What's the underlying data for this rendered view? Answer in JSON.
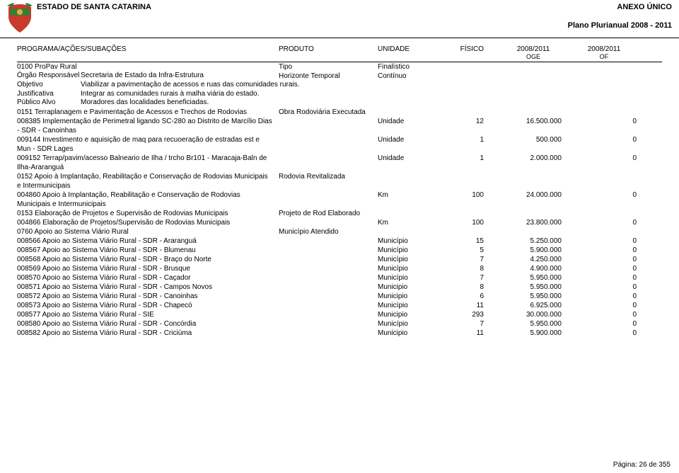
{
  "header": {
    "state": "ESTADO DE SANTA CATARINA",
    "anexo": "ANEXO ÚNICO",
    "plano": "Plano Plurianual 2008 - 2011"
  },
  "columns": {
    "programa": "PROGRAMA/AÇÕES/SUBAÇÕES",
    "produto": "PRODUTO",
    "unidade": "UNIDADE",
    "fisico": "FÍSICO",
    "oge_top": "2008/2011",
    "oge_sub": "OGE",
    "of_top": "2008/2011",
    "of_sub": "OF"
  },
  "meta": {
    "prog_code": "0100 ProPav Rural",
    "tipo_label": "Tipo",
    "tipo_value": "Finalístico",
    "orgao_label": "Órgão Responsável",
    "orgao_value": "Secretaria de Estado da Infra-Estrutura",
    "horiz_label": "Horizonte Temporal",
    "horiz_value": "Contínuo",
    "objetivo_label": "Objetivo",
    "objetivo_value": "Viabilizar a pavimentação de acessos e ruas das comunidades rurais.",
    "justif_label": "Justificativa",
    "justif_value": "Integrar as comunidades rurais à malha viária do estado.",
    "publico_label": "Público Alvo",
    "publico_value": "Moradores das localidades beneficiadas."
  },
  "sections": [
    {
      "title": "0151 Terraplanagem e Pavimentação de Acessos e Trechos de Rodovias",
      "produto": "Obra Rodoviária Executada",
      "rows": [
        {
          "desc": "008385 Implementação de Perimetral ligando SC-280 ao Distrito de Marcílio Dias - SDR - Canoinhas",
          "unit": "Unidade",
          "fis": "12",
          "oge": "16.500.000",
          "of": "0"
        },
        {
          "desc": "009144 Investimento e aquisição de maq para recuoeração de estradas est e Mun - SDR Lages",
          "unit": "Unidade",
          "fis": "1",
          "oge": "500.000",
          "of": "0"
        },
        {
          "desc": "009152 Terrap/pavim/acesso Balneario de Ilha / trcho Br101 - Maracaja-Baln de Ilha-Araranguá",
          "unit": "Unidade",
          "fis": "1",
          "oge": "2.000.000",
          "of": "0"
        }
      ]
    },
    {
      "title": "0152 Apoio à Implantação, Reabilitação e Conservação de Rodovias Municipais e Intermunicipais",
      "produto": "Rodovia Revitalizada",
      "rows": [
        {
          "desc": "004860 Apoio à Implantação, Reabilitação e Conservação de Rodovias Municipais e Intermunicipais",
          "unit": "Km",
          "fis": "100",
          "oge": "24.000.000",
          "of": "0"
        }
      ]
    },
    {
      "title": "0153 Elaboração de Projetos e Supervisão de Rodovias Municipais",
      "produto": "Projeto de Rod Elaborado",
      "rows": [
        {
          "desc": "004866 Elaboração de Projetos/Supervisão de Rodovias Municipais",
          "unit": "Km",
          "fis": "100",
          "oge": "23.800.000",
          "of": "0"
        }
      ]
    },
    {
      "title": "0760 Apoio ao Sistema Viário Rural",
      "produto": "Município Atendido",
      "rows": [
        {
          "desc": "008566 Apoio ao Sistema Viário Rural - SDR - Araranguá",
          "unit": "Município",
          "fis": "15",
          "oge": "5.250.000",
          "of": "0"
        },
        {
          "desc": "008567 Apoio ao Sistema Viário Rural - SDR - Blumenau",
          "unit": "Município",
          "fis": "5",
          "oge": "5.900.000",
          "of": "0"
        },
        {
          "desc": "008568 Apoio ao Sistema Viário Rural - SDR - Braço do Norte",
          "unit": "Município",
          "fis": "7",
          "oge": "4.250.000",
          "of": "0"
        },
        {
          "desc": "008569 Apoio ao Sistema Viário Rural - SDR - Brusque",
          "unit": "Município",
          "fis": "8",
          "oge": "4.900.000",
          "of": "0"
        },
        {
          "desc": "008570 Apoio ao Sistema Viário Rural - SDR - Caçador",
          "unit": "Município",
          "fis": "7",
          "oge": "5.950.000",
          "of": "0"
        },
        {
          "desc": "008571 Apoio ao Sistema Viário Rural - SDR - Campos Novos",
          "unit": "Municipio",
          "fis": "8",
          "oge": "5.950.000",
          "of": "0"
        },
        {
          "desc": "008572 Apoio ao Sistema Viário Rural - SDR - Canoinhas",
          "unit": "Municipio",
          "fis": "6",
          "oge": "5.950.000",
          "of": "0"
        },
        {
          "desc": "008573 Apoio ao Sistema Viário Rural - SDR - Chapecó",
          "unit": "Município",
          "fis": "11",
          "oge": "6.925.000",
          "of": "0"
        },
        {
          "desc": "008577 Apoio ao Sistema Viário Rural - SIE",
          "unit": "Municipio",
          "fis": "293",
          "oge": "30.000.000",
          "of": "0"
        },
        {
          "desc": "008580 Apoio ao Sistema Viário Rural - SDR - Concórdia",
          "unit": "Município",
          "fis": "7",
          "oge": "5.950.000",
          "of": "0"
        },
        {
          "desc": "008582 Apoio ao Sistema Viário Rural - SDR - Criciúma",
          "unit": "Municipio",
          "fis": "11",
          "oge": "5.900.000",
          "of": "0"
        }
      ]
    }
  ],
  "footer": {
    "page": "Página: 26 de 355"
  },
  "colors": {
    "text": "#000000",
    "bg": "#ffffff",
    "border": "#000000",
    "logo_red": "#c83a2a",
    "logo_green": "#3d7a3a",
    "logo_yellow": "#d9b13b"
  }
}
